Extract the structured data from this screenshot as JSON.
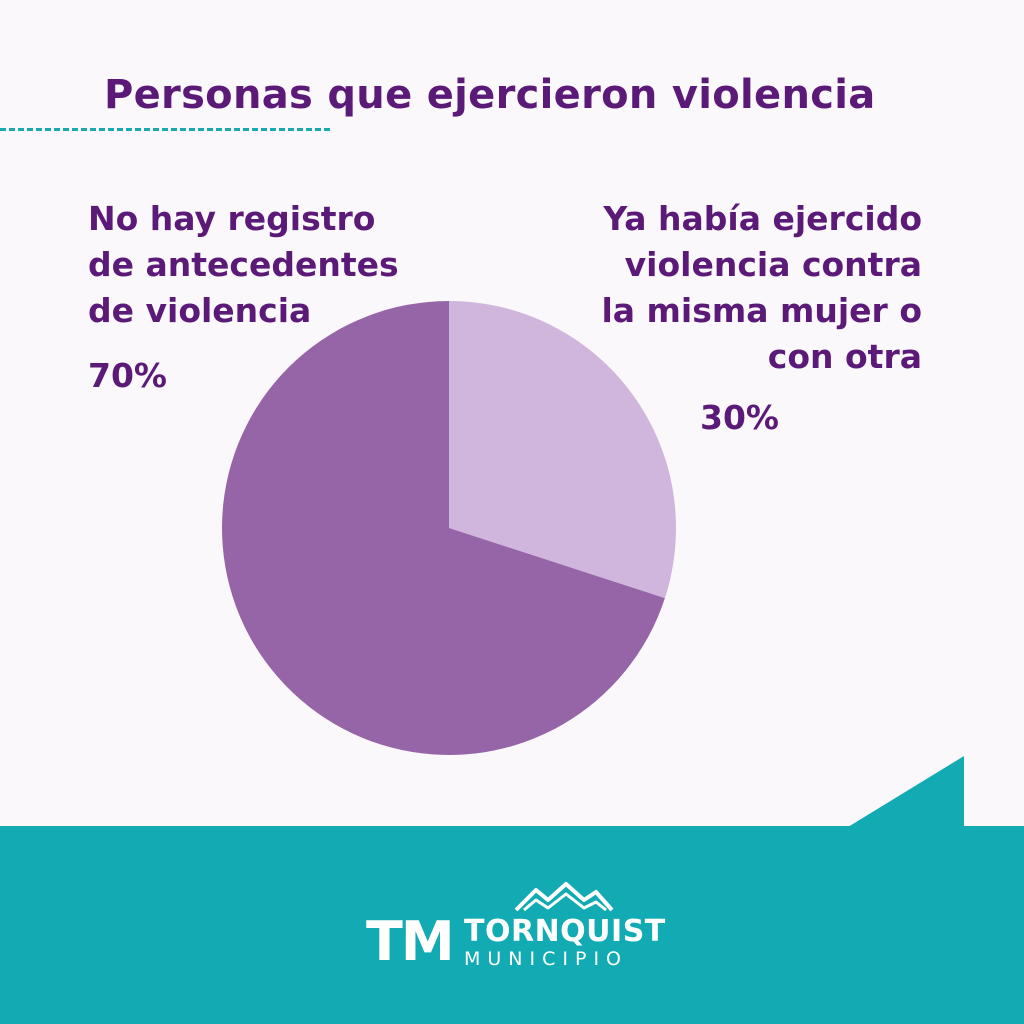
{
  "chart_data": {
    "type": "pie",
    "title": "Personas que ejercieron violencia",
    "slices": [
      {
        "label_lines": [
          "No hay registro",
          "de antecedentes",
          "de violencia"
        ],
        "value": 70,
        "value_label": "70%",
        "color": "#9565a8"
      },
      {
        "label_lines": [
          "Ya había ejercido",
          "violencia contra",
          "la misma mujer o",
          "con otra"
        ],
        "value": 30,
        "value_label": "30%",
        "color": "#d0b6dc"
      }
    ],
    "legend": "none"
  },
  "footer": {
    "logo_mark": "TM",
    "logo_name": "TORNQUIST",
    "logo_sub": "MUNICIPIO",
    "band_color": "#13abb3"
  },
  "colors": {
    "title": "#5b1a78",
    "accent_dash": "#1aa9b0",
    "background": "#fbf8fb"
  }
}
